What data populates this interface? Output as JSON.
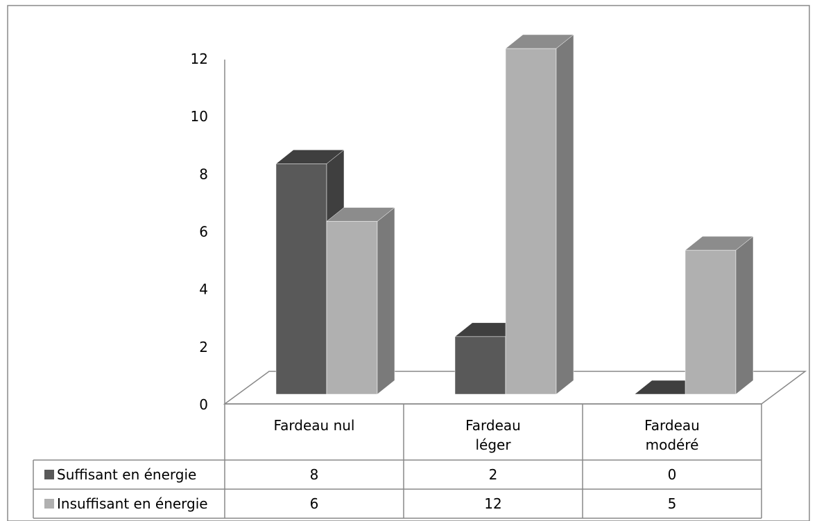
{
  "chart_data": {
    "type": "bar",
    "categories": [
      [
        "Fardeau nul"
      ],
      [
        "Fardeau",
        "léger"
      ],
      [
        "Fardeau",
        "modéré"
      ]
    ],
    "series": [
      {
        "name": "Suffisant en énergie",
        "values": [
          8,
          2,
          0
        ],
        "color": "#595959",
        "top_color": "#3f3f3f",
        "side_color": "#3f3f3f"
      },
      {
        "name": "Insuffisant en énergie",
        "values": [
          6,
          12,
          5
        ],
        "color": "#b0b0b0",
        "top_color": "#8c8c8c",
        "side_color": "#7a7a7a"
      }
    ],
    "table_values": [
      [
        "8",
        "2",
        "0"
      ],
      [
        "6",
        "12",
        "5"
      ]
    ],
    "y_ticks": [
      "0",
      "2",
      "4",
      "6",
      "8",
      "10",
      "12"
    ],
    "ylim": [
      0,
      12
    ],
    "title": "",
    "xlabel": "",
    "ylabel": "",
    "legend": "data-table",
    "grid": false
  }
}
